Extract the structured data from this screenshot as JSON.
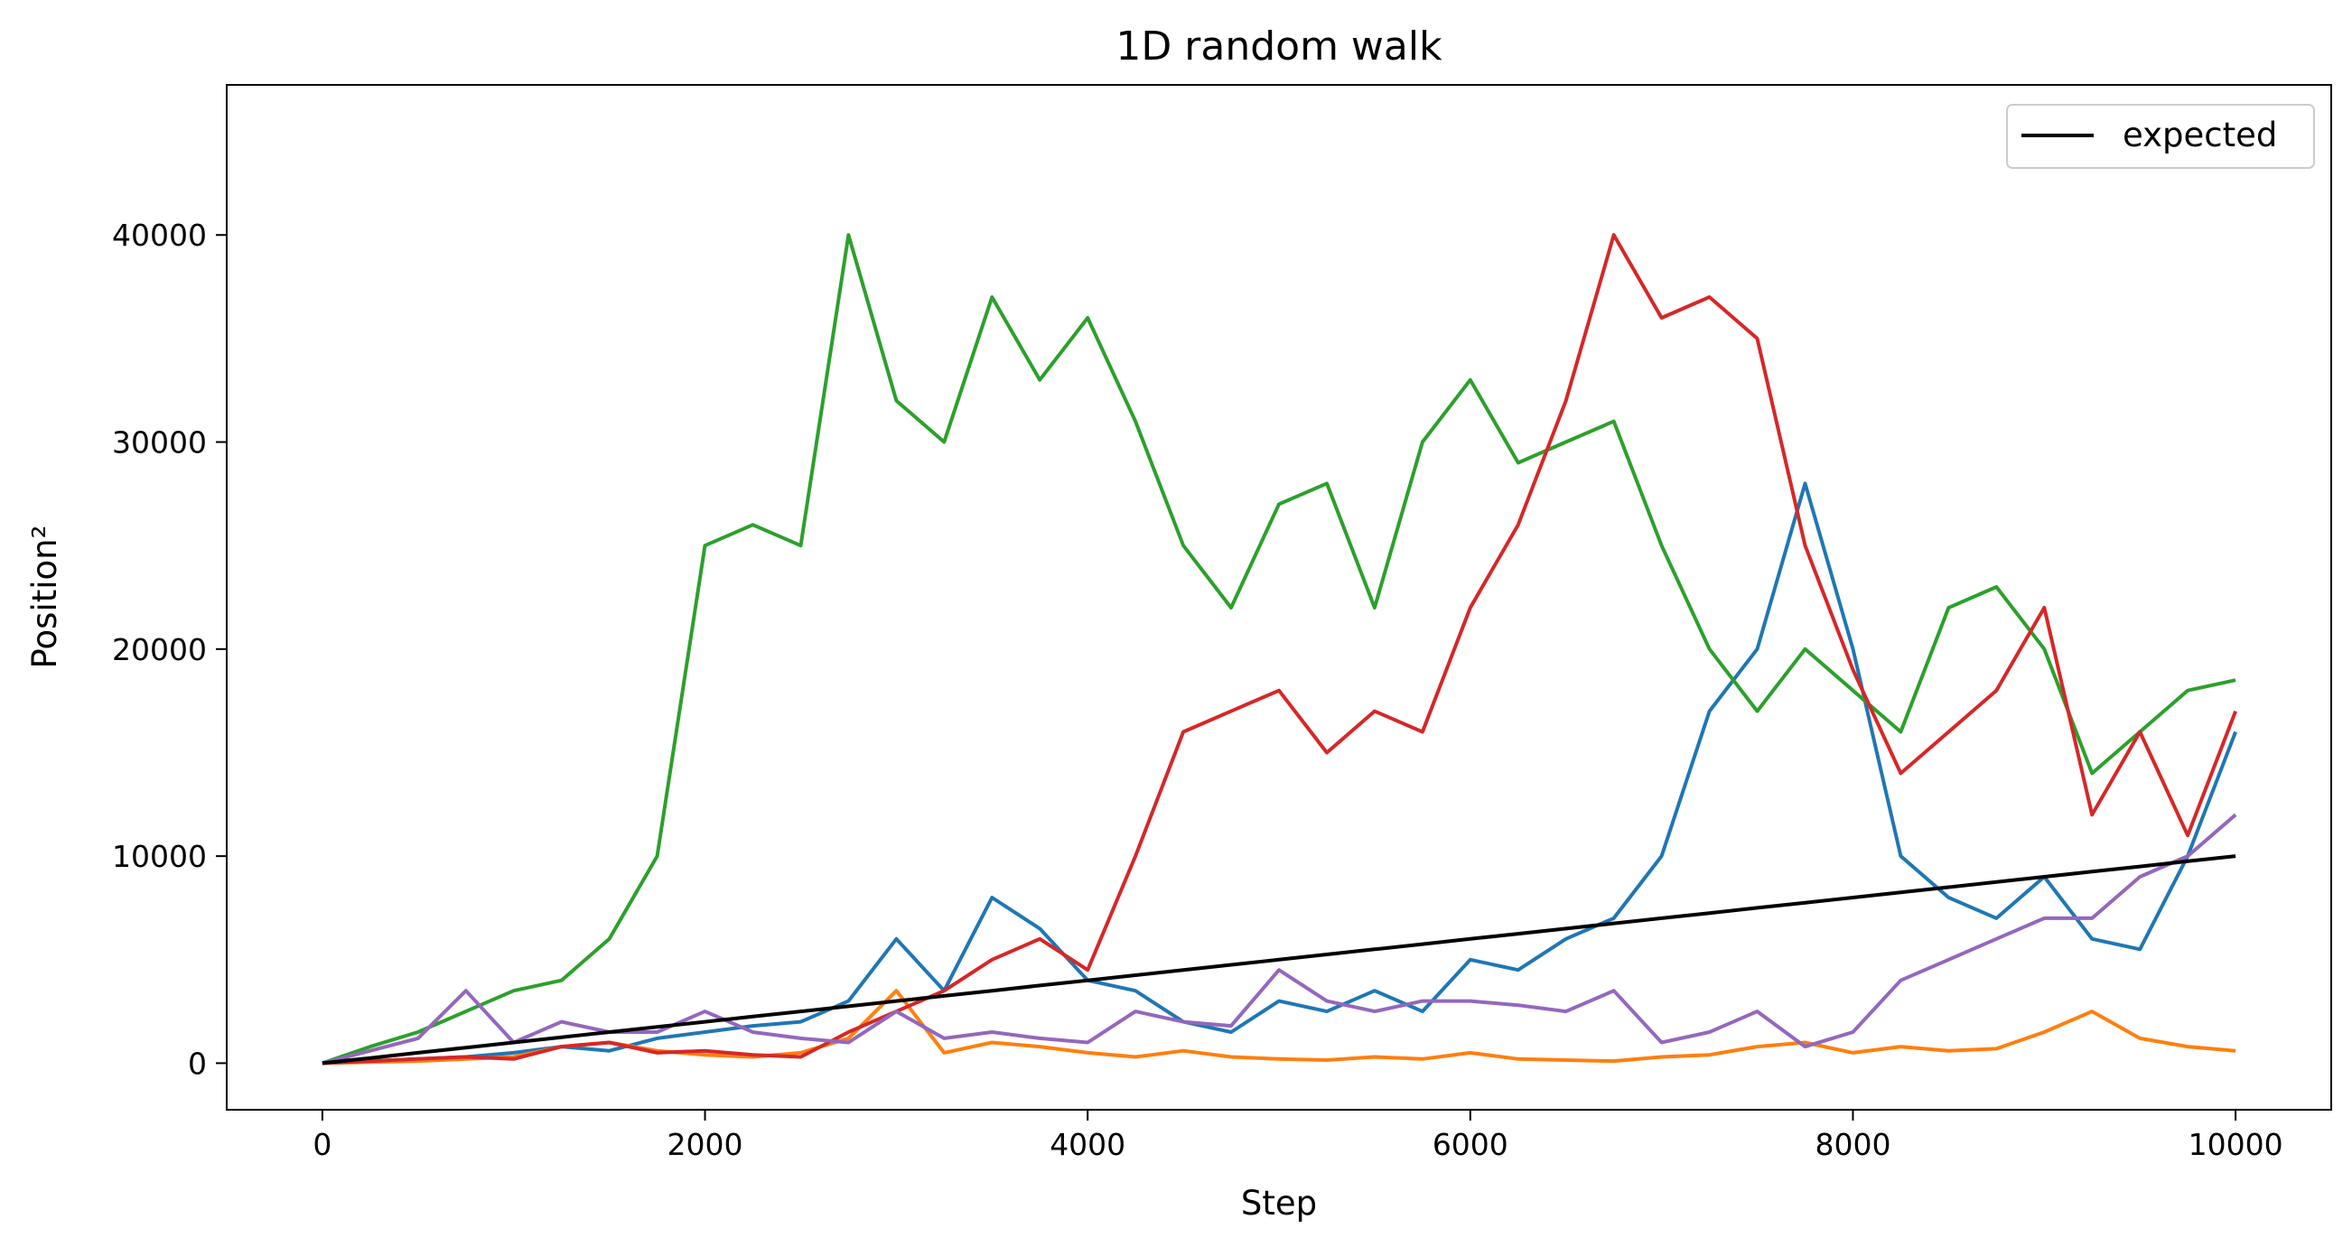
{
  "chart_data": {
    "type": "line",
    "title": "1D random walk",
    "xlabel": "Step",
    "ylabel": "Position²",
    "xlim": [
      -500,
      10500
    ],
    "ylim": [
      -2250,
      47250
    ],
    "xticks": [
      0,
      2000,
      4000,
      6000,
      8000,
      10000
    ],
    "xtick_labels": [
      "0",
      "2000",
      "4000",
      "6000",
      "8000",
      "10000"
    ],
    "yticks": [
      0,
      10000,
      20000,
      30000,
      40000
    ],
    "ytick_labels": [
      "0",
      "10000",
      "20000",
      "30000",
      "40000"
    ],
    "grid": false,
    "legend": {
      "position": "top-right",
      "entries": [
        "expected"
      ]
    },
    "x": [
      0,
      250,
      500,
      750,
      1000,
      1250,
      1500,
      1750,
      2000,
      2250,
      2500,
      2750,
      3000,
      3250,
      3500,
      3750,
      4000,
      4250,
      4500,
      4750,
      5000,
      5250,
      5500,
      5750,
      6000,
      6250,
      6500,
      6750,
      7000,
      7250,
      7500,
      7750,
      8000,
      8250,
      8500,
      8750,
      9000,
      9250,
      9500,
      9750,
      10000
    ],
    "series": [
      {
        "color": "#1f77b4",
        "values": [
          0,
          100,
          200,
          300,
          500,
          800,
          600,
          1200,
          1500,
          1800,
          2000,
          3000,
          6000,
          3500,
          8000,
          6500,
          4000,
          3500,
          2000,
          1500,
          3000,
          2500,
          3500,
          2500,
          5000,
          4500,
          6000,
          7000,
          10000,
          17000,
          20000,
          28000,
          20000,
          10000,
          8000,
          7000,
          9000,
          6000,
          5500,
          10000,
          16000
        ]
      },
      {
        "color": "#ff7f0e",
        "values": [
          0,
          50,
          100,
          200,
          300,
          800,
          1000,
          600,
          400,
          300,
          500,
          1200,
          3500,
          500,
          1000,
          800,
          500,
          300,
          600,
          300,
          200,
          150,
          300,
          200,
          500,
          200,
          150,
          100,
          300,
          400,
          800,
          1000,
          500,
          800,
          600,
          700,
          1500,
          2500,
          1200,
          800,
          600
        ]
      },
      {
        "color": "#2ca02c",
        "values": [
          0,
          800,
          1500,
          2500,
          3500,
          4000,
          6000,
          10000,
          25000,
          26000,
          25000,
          40000,
          32000,
          30000,
          37000,
          33000,
          36000,
          31000,
          25000,
          22000,
          27000,
          28000,
          22000,
          30000,
          33000,
          29000,
          30000,
          31000,
          25000,
          20000,
          17000,
          20000,
          18000,
          16000,
          22000,
          23000,
          20000,
          14000,
          16000,
          18000,
          18500
        ]
      },
      {
        "color": "#d62728",
        "values": [
          0,
          100,
          200,
          300,
          200,
          800,
          1000,
          500,
          600,
          400,
          300,
          1500,
          2500,
          3500,
          5000,
          6000,
          4500,
          10000,
          16000,
          17000,
          18000,
          15000,
          17000,
          16000,
          22000,
          26000,
          32000,
          40000,
          36000,
          37000,
          35000,
          25000,
          19000,
          14000,
          16000,
          18000,
          22000,
          12000,
          16000,
          11000,
          17000
        ]
      },
      {
        "color": "#9467bd",
        "values": [
          0,
          600,
          1200,
          3500,
          1000,
          2000,
          1500,
          1500,
          2500,
          1500,
          1200,
          1000,
          2500,
          1200,
          1500,
          1200,
          1000,
          2500,
          2000,
          1800,
          4500,
          3000,
          2500,
          3000,
          3000,
          2800,
          2500,
          3500,
          1000,
          1500,
          2500,
          800,
          1500,
          4000,
          5000,
          6000,
          7000,
          7000,
          9000,
          10000,
          12000
        ]
      },
      {
        "color": "#000000",
        "name": "expected",
        "values": [
          0,
          250,
          500,
          750,
          1000,
          1250,
          1500,
          1750,
          2000,
          2250,
          2500,
          2750,
          3000,
          3250,
          3500,
          3750,
          4000,
          4250,
          4500,
          4750,
          5000,
          5250,
          5500,
          5750,
          6000,
          6250,
          6500,
          6750,
          7000,
          7250,
          7500,
          7750,
          8000,
          8250,
          8500,
          8750,
          9000,
          9250,
          9500,
          9750,
          10000
        ]
      }
    ]
  }
}
